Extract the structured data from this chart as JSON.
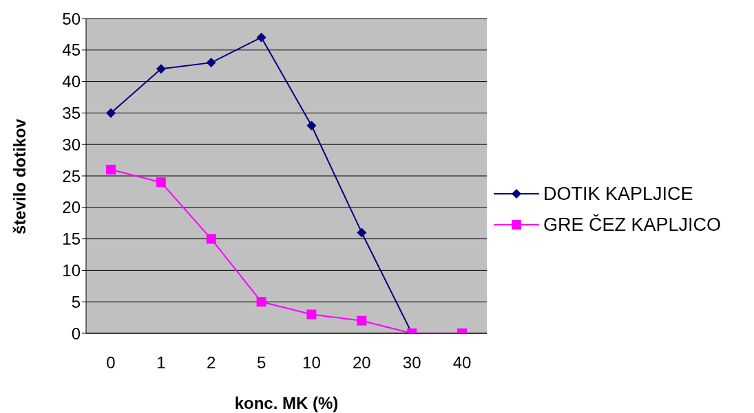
{
  "chart_data": {
    "type": "line",
    "xlabel": "konc. MK (%)",
    "ylabel": "število dotikov",
    "categories": [
      "0",
      "1",
      "2",
      "5",
      "10",
      "20",
      "30",
      "40"
    ],
    "series": [
      {
        "name": "DOTIK KAPLJICE",
        "color": "#000080",
        "marker": "diamond",
        "values": [
          35,
          42,
          43,
          47,
          33,
          16,
          0,
          null
        ]
      },
      {
        "name": "GRE ČEZ KAPLJICO",
        "color": "#ff00ff",
        "marker": "square",
        "values": [
          26,
          24,
          15,
          5,
          3,
          2,
          0,
          0
        ]
      }
    ],
    "ylim": [
      0,
      50
    ],
    "yticks": [
      0,
      5,
      10,
      15,
      20,
      25,
      30,
      35,
      40,
      45,
      50
    ],
    "grid": "y",
    "legend": "right"
  }
}
